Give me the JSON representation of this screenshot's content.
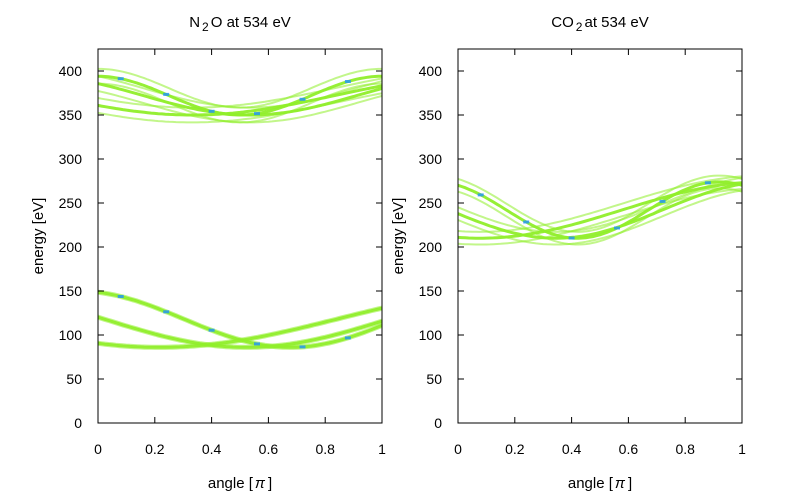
{
  "chart_data": [
    {
      "type": "heatmap",
      "title_main": "N",
      "title_sub": "2",
      "title_rest": "O at 534 eV",
      "xlabel_main": "angle [",
      "xlabel_symbol": "π",
      "xlabel_close": "]",
      "ylabel": "energy [eV]",
      "xlim": [
        0,
        1
      ],
      "ylim": [
        0,
        425
      ],
      "xticks": [
        0,
        0.2,
        0.4,
        0.6,
        0.8,
        1
      ],
      "xtick_labels": [
        "0",
        "0.2",
        "0.4",
        "0.6",
        "0.8",
        "1"
      ],
      "yticks": [
        0,
        50,
        100,
        150,
        200,
        250,
        300,
        350,
        400
      ],
      "ytick_labels": [
        "0",
        "50",
        "100",
        "150",
        "200",
        "250",
        "300",
        "350",
        "400"
      ],
      "grid": false,
      "colors": {
        "low": "#90ee2a",
        "mid": "#5ce05c",
        "high": "#1e90ff"
      },
      "series": [
        {
          "type": "band",
          "center": 372,
          "amplitude": 22,
          "thickness": 14,
          "periods": [
            1.0,
            1.5,
            2.0
          ],
          "phases": [
            0.0,
            0.9,
            2.1
          ]
        },
        {
          "type": "band",
          "center": 118,
          "amplitude": 32,
          "thickness": 3,
          "periods": [
            1.5,
            2.0,
            2.5
          ],
          "phases": [
            0.3,
            1.5,
            2.6
          ]
        }
      ]
    },
    {
      "type": "heatmap",
      "title_main": "CO",
      "title_sub": "2",
      "title_rest": "at 534 eV",
      "xlabel_main": "angle [",
      "xlabel_symbol": "π",
      "xlabel_close": "]",
      "ylabel": "energy [eV]",
      "xlim": [
        0,
        1
      ],
      "ylim": [
        0,
        425
      ],
      "xticks": [
        0,
        0.2,
        0.4,
        0.6,
        0.8,
        1
      ],
      "xtick_labels": [
        "0",
        "0.2",
        "0.4",
        "0.6",
        "0.8",
        "1"
      ],
      "yticks": [
        0,
        50,
        100,
        150,
        200,
        250,
        300,
        350,
        400
      ],
      "ytick_labels": [
        "0",
        "50",
        "100",
        "150",
        "200",
        "250",
        "300",
        "350",
        "400"
      ],
      "grid": false,
      "colors": {
        "low": "#90ee2a",
        "mid": "#5ce05c",
        "high": "#1e90ff"
      },
      "series": [
        {
          "type": "band",
          "center": 242,
          "amplitude": 32,
          "thickness": 12,
          "periods": [
            1.0,
            1.5,
            2.0
          ],
          "phases": [
            0.5,
            1.7,
            2.9
          ]
        }
      ]
    }
  ]
}
